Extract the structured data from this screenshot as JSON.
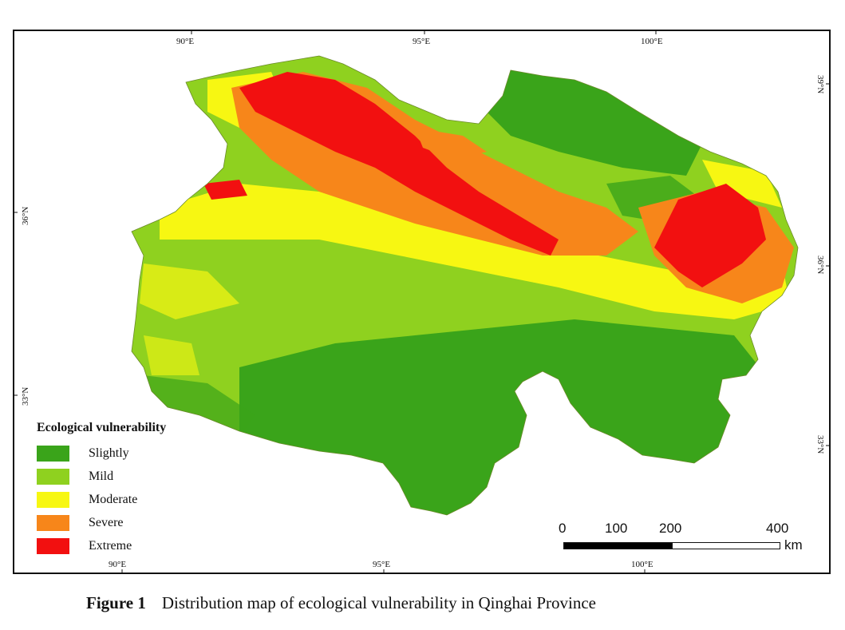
{
  "map": {
    "legend_title": "Ecological vulnerability",
    "classes": [
      {
        "label": "Slightly",
        "color": "#3aa41a"
      },
      {
        "label": "Mild",
        "color": "#8fd11f"
      },
      {
        "label": "Moderate",
        "color": "#f7f712"
      },
      {
        "label": "Severe",
        "color": "#f7861a"
      },
      {
        "label": "Extreme",
        "color": "#f21010"
      }
    ],
    "top_ticks": [
      "90°E",
      "95°E",
      "100°E"
    ],
    "bottom_ticks": [
      "90°E",
      "95°E",
      "100°E"
    ],
    "left_ticks": [
      "36°N",
      "33°N"
    ],
    "right_ticks": [
      "39°N",
      "36°N",
      "33°N"
    ],
    "scalebar": {
      "labels": [
        "0",
        "100",
        "200",
        "400"
      ],
      "unit": "km"
    }
  },
  "caption": {
    "label": "Figure 1",
    "text": "Distribution map of ecological vulnerability in Qinghai Province"
  }
}
